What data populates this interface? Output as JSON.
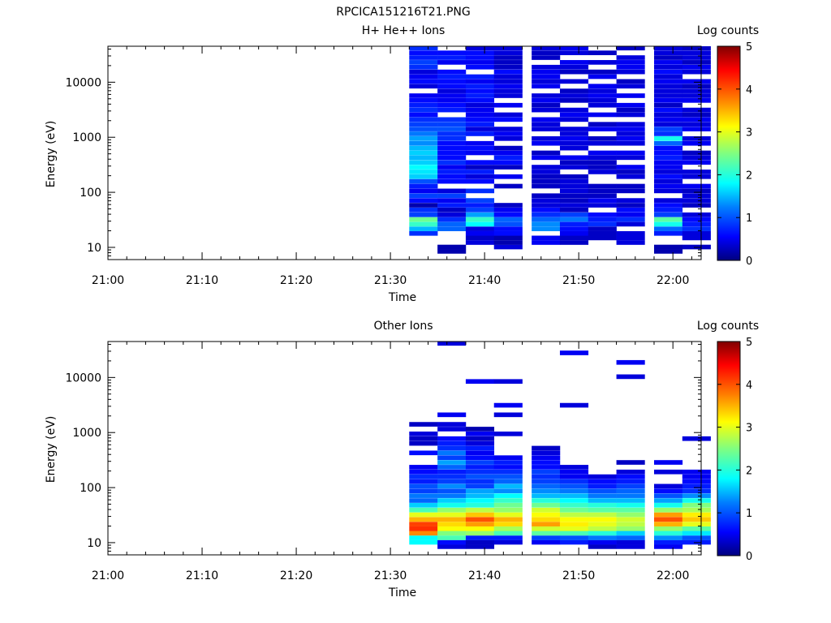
{
  "title": "RPCICA151216T21.PNG",
  "chart_data": [
    {
      "type": "heatmap",
      "title": "H+ He++ Ions",
      "xlabel": "Time",
      "ylabel": "Energy (eV)",
      "x_ticks": [
        "21:00",
        "21:10",
        "21:20",
        "21:30",
        "21:40",
        "21:50",
        "22:00"
      ],
      "xlim": [
        "21:00",
        "22:03"
      ],
      "y_scale": "log",
      "y_ticks": [
        "10",
        "100",
        "1000",
        "10000"
      ],
      "ylim": [
        6,
        45000
      ],
      "colorbar": {
        "label": "Log counts",
        "ticks": [
          "0",
          "1",
          "2",
          "3",
          "4",
          "5"
        ],
        "range": [
          0,
          5
        ],
        "colormap": "rainbow"
      },
      "time_columns": [
        "21:32",
        "21:35",
        "21:38",
        "21:41",
        "21:45",
        "21:48",
        "21:51",
        "21:54",
        "21:58",
        "22:01"
      ],
      "energy_channels_ev": [
        8.5,
        10.2,
        12.3,
        14.9,
        18,
        21.8,
        26.5,
        32.3,
        39.3,
        48,
        58.5,
        71.5,
        87.3,
        106.5,
        130,
        158.7,
        193.5,
        236,
        288,
        351.4,
        429,
        523,
        638,
        779,
        951,
        1161,
        1417,
        1730,
        2111,
        2576,
        3144,
        3837,
        4683,
        5714,
        6973,
        8511,
        10385,
        12674,
        15467,
        18876,
        23035,
        28110,
        34305,
        41865
      ],
      "log_counts": [
        [
          null,
          null,
          null,
          null,
          0.8,
          1.5,
          2.1,
          2.4,
          0.9,
          0.8,
          0.2,
          0.6,
          0.9,
          0.5,
          0.7,
          1.0,
          1.6,
          1.7,
          1.8,
          1.6,
          1.5,
          1.6,
          1.5,
          1.3,
          1.4,
          1.2,
          1.0,
          0.9,
          0.8,
          0.6,
          0.8,
          0.7,
          0.6,
          0.5,
          null,
          0.4,
          0.6,
          0.5,
          0.4,
          0.8,
          0.9,
          0.7,
          0.6,
          0.8
        ],
        [
          0.2,
          0.2,
          null,
          null,
          null,
          1.1,
          1.1,
          0.8,
          0.4,
          0.3,
          0.7,
          0.5,
          0.9,
          0.4,
          null,
          0.6,
          0.6,
          0.7,
          0.5,
          0.8,
          0.6,
          0.6,
          0.6,
          0.6,
          0.8,
          0.8,
          1.0,
          0.9,
          0.8,
          null,
          0.7,
          0.6,
          0.5,
          0.5,
          0.4,
          0.6,
          0.6,
          0.7,
          0.6,
          null,
          0.5,
          0.7,
          0.6,
          null
        ],
        [
          null,
          null,
          0.4,
          0.3,
          0.5,
          0.4,
          1.8,
          2.1,
          1.4,
          0.9,
          0.7,
          0.9,
          null,
          0.8,
          null,
          0.6,
          0.4,
          0.7,
          0.3,
          0.6,
          null,
          0.5,
          0.6,
          0.5,
          null,
          0.7,
          0.4,
          0.7,
          0.6,
          0.5,
          0.5,
          0.4,
          0.6,
          0.7,
          0.6,
          0.7,
          0.5,
          0.7,
          null,
          0.6,
          0.5,
          0.6,
          0.6,
          0.4
        ],
        [
          null,
          0.4,
          0.2,
          0.2,
          0.6,
          0.6,
          1.0,
          1.1,
          0.6,
          0.5,
          0.3,
          null,
          null,
          null,
          0.3,
          null,
          0.5,
          null,
          0.3,
          0.6,
          0.7,
          0.5,
          0.3,
          null,
          0.4,
          0.5,
          0.4,
          null,
          0.6,
          0.4,
          null,
          0.5,
          null,
          0.4,
          0.4,
          0.5,
          0.4,
          0.4,
          0.6,
          0.3,
          0.3,
          0.3,
          0.4,
          0.4
        ],
        [
          null,
          null,
          0.5,
          0.5,
          null,
          1.3,
          1.3,
          1.1,
          0.8,
          0.6,
          0.4,
          0.4,
          0.3,
          null,
          0.3,
          0.3,
          0.3,
          0.4,
          0.4,
          null,
          0.5,
          0.3,
          null,
          0.5,
          0.4,
          null,
          0.4,
          0.4,
          0.5,
          null,
          0.4,
          0.3,
          0.5,
          0.4,
          null,
          0.5,
          0.4,
          0.5,
          0.5,
          0.4,
          null,
          0.3,
          0.3,
          0.4
        ],
        [
          null,
          null,
          0.3,
          0.3,
          0.5,
          0.6,
          0.7,
          1.2,
          0.9,
          0.3,
          0.4,
          0.3,
          0.3,
          0.4,
          0.4,
          0.4,
          0.3,
          null,
          0.4,
          0.3,
          0.5,
          null,
          0.4,
          0.4,
          0.5,
          0.4,
          0.4,
          null,
          0.4,
          0.5,
          0.4,
          null,
          0.3,
          0.4,
          0.3,
          null,
          0.4,
          null,
          0.3,
          0.4,
          0.5,
          null,
          0.4,
          0.5
        ],
        [
          null,
          null,
          null,
          0.3,
          0.3,
          0.3,
          0.8,
          0.7,
          0.6,
          null,
          0.4,
          0.5,
          0.3,
          0.3,
          0.3,
          null,
          null,
          0.4,
          0.3,
          0.3,
          0.4,
          0.5,
          null,
          0.4,
          0.3,
          null,
          0.5,
          0.3,
          null,
          0.5,
          null,
          0.4,
          0.4,
          0.5,
          0.4,
          0.5,
          null,
          0.5,
          0.3,
          null,
          0.4,
          null,
          0.3,
          null
        ],
        [
          null,
          null,
          0.4,
          0.4,
          0.4,
          null,
          0.4,
          0.8,
          0.5,
          0.6,
          0.3,
          0.4,
          null,
          0.3,
          0.3,
          null,
          0.4,
          0.3,
          0.5,
          null,
          0.4,
          0.5,
          null,
          0.4,
          0.5,
          0.4,
          0.5,
          0.4,
          null,
          0.4,
          0.3,
          0.5,
          null,
          0.5,
          null,
          0.4,
          0.3,
          null,
          0.4,
          0.5,
          0.5,
          0.4,
          null,
          0.3
        ],
        [
          0.2,
          0.2,
          null,
          null,
          0.7,
          1.1,
          1.9,
          2.3,
          0.9,
          0.7,
          0.6,
          0.4,
          null,
          0.4,
          0.5,
          0.4,
          0.6,
          0.4,
          0.5,
          0.5,
          0.7,
          0.6,
          0.6,
          1.1,
          1.9,
          0.8,
          0.9,
          0.4,
          0.5,
          0.4,
          0.6,
          0.3,
          0.5,
          0.4,
          0.4,
          0.4,
          0.5,
          0.4,
          0.6,
          0.4,
          0.5,
          0.3,
          0.4,
          0.4
        ],
        [
          null,
          0.3,
          null,
          0.4,
          0.4,
          0.8,
          0.7,
          0.6,
          0.4,
          null,
          0.3,
          0.4,
          0.4,
          0.3,
          0.5,
          null,
          0.4,
          0.4,
          null,
          0.5,
          0.4,
          0.3,
          null,
          0.5,
          0.4,
          null,
          0.5,
          0.4,
          0.5,
          0.3,
          0.4,
          null,
          0.5,
          0.4,
          0.4,
          0.3,
          0.5,
          null,
          0.4,
          0.5,
          0.3,
          0.4,
          0.4,
          0.3
        ]
      ]
    },
    {
      "type": "heatmap",
      "title": "Other Ions",
      "xlabel": "Time",
      "ylabel": "Energy (eV)",
      "x_ticks": [
        "21:00",
        "21:10",
        "21:20",
        "21:30",
        "21:40",
        "21:50",
        "22:00"
      ],
      "xlim": [
        "21:00",
        "22:03"
      ],
      "y_scale": "log",
      "y_ticks": [
        "10",
        "100",
        "1000",
        "10000"
      ],
      "ylim": [
        6,
        45000
      ],
      "colorbar": {
        "label": "Log counts",
        "ticks": [
          "0",
          "1",
          "2",
          "3",
          "4",
          "5"
        ],
        "range": [
          0,
          5
        ],
        "colormap": "rainbow"
      },
      "time_columns": [
        "21:32",
        "21:35",
        "21:38",
        "21:41",
        "21:45",
        "21:48",
        "21:51",
        "21:54",
        "21:58",
        "22:01"
      ],
      "energy_channels_ev": [
        8.5,
        10.2,
        12.3,
        14.9,
        18,
        21.8,
        26.5,
        32.3,
        39.3,
        48,
        58.5,
        71.5,
        87.3,
        106.5,
        130,
        158.7,
        193.5,
        236,
        288,
        351.4,
        429,
        523,
        638,
        779,
        951,
        1161,
        1417,
        1730,
        2111,
        2576,
        3144,
        3837,
        4683,
        5714,
        6973,
        8511,
        10385,
        12674,
        15467,
        18876,
        23035,
        28110,
        34305,
        41865
      ],
      "log_counts": [
        [
          null,
          1.8,
          1.8,
          3.7,
          4.2,
          4.1,
          3.5,
          3.0,
          2.2,
          1.6,
          1.1,
          1.2,
          0.9,
          1.0,
          0.7,
          0.8,
          0.6,
          0.5,
          null,
          null,
          0.6,
          null,
          0.3,
          0.3,
          0.4,
          null,
          0.3,
          null,
          null,
          null,
          null,
          null,
          null,
          null,
          null,
          null,
          null,
          null,
          null,
          null,
          null,
          null,
          null,
          null
        ],
        [
          0.4,
          0.6,
          2.2,
          2.5,
          3.1,
          3.3,
          3.5,
          3.0,
          2.6,
          1.9,
          1.6,
          1.2,
          1.0,
          1.3,
          0.9,
          0.8,
          0.7,
          1.1,
          1.4,
          0.9,
          1.2,
          0.8,
          0.7,
          0.6,
          null,
          0.4,
          0.4,
          null,
          0.5,
          null,
          null,
          null,
          null,
          null,
          null,
          null,
          null,
          null,
          null,
          null,
          null,
          null,
          null,
          0.4
        ],
        [
          0.3,
          0.3,
          0.7,
          2.6,
          3.1,
          3.6,
          4.0,
          3.4,
          2.8,
          2.0,
          1.8,
          1.5,
          1.4,
          0.9,
          0.8,
          1.0,
          0.8,
          0.7,
          0.9,
          0.6,
          0.5,
          0.7,
          0.4,
          0.3,
          0.5,
          0.2,
          null,
          null,
          null,
          null,
          null,
          null,
          null,
          null,
          null,
          0.5,
          null,
          null,
          null,
          null,
          null,
          null,
          null,
          null
        ],
        [
          null,
          0.4,
          0.7,
          2.2,
          2.7,
          3.3,
          3.5,
          3.0,
          2.6,
          2.4,
          2.1,
          1.8,
          1.3,
          1.5,
          1.1,
          1.0,
          0.8,
          0.6,
          0.7,
          0.5,
          null,
          null,
          null,
          null,
          0.4,
          null,
          null,
          null,
          0.4,
          null,
          0.5,
          null,
          null,
          null,
          null,
          0.4,
          null,
          null,
          null,
          null,
          null,
          null,
          null,
          null
        ],
        [
          null,
          0.5,
          0.9,
          2.3,
          2.9,
          3.6,
          3.3,
          3.1,
          2.9,
          2.4,
          2.0,
          1.5,
          1.3,
          1.1,
          0.9,
          0.8,
          0.9,
          0.6,
          0.6,
          0.5,
          0.4,
          0.3,
          null,
          null,
          null,
          null,
          null,
          null,
          null,
          null,
          null,
          null,
          null,
          null,
          null,
          null,
          null,
          null,
          null,
          null,
          null,
          null,
          null,
          null
        ],
        [
          null,
          0.7,
          1.0,
          2.2,
          3.0,
          3.2,
          3.1,
          2.8,
          2.4,
          2.1,
          1.8,
          1.5,
          1.2,
          1.0,
          0.8,
          0.5,
          0.5,
          0.4,
          null,
          null,
          null,
          null,
          null,
          null,
          null,
          null,
          null,
          null,
          null,
          null,
          0.4,
          null,
          null,
          null,
          null,
          null,
          null,
          null,
          null,
          null,
          null,
          0.5,
          null,
          null
        ],
        [
          0.3,
          0.5,
          1.2,
          2.0,
          2.8,
          3.0,
          3.1,
          2.8,
          2.3,
          2.0,
          1.5,
          1.2,
          1.0,
          0.7,
          0.6,
          0.4,
          null,
          null,
          null,
          null,
          null,
          null,
          null,
          null,
          null,
          null,
          null,
          null,
          null,
          null,
          null,
          null,
          null,
          null,
          null,
          null,
          null,
          null,
          null,
          null,
          null,
          null,
          null,
          null
        ],
        [
          0.4,
          0.4,
          1.1,
          1.6,
          2.6,
          2.8,
          2.9,
          2.6,
          2.3,
          1.9,
          1.5,
          1.2,
          1.1,
          0.9,
          0.7,
          0.6,
          0.4,
          null,
          0.3,
          null,
          null,
          null,
          null,
          null,
          null,
          null,
          null,
          null,
          null,
          null,
          null,
          null,
          null,
          null,
          null,
          null,
          0.4,
          null,
          null,
          0.5,
          null,
          null,
          null,
          null
        ],
        [
          0.5,
          0.7,
          1.3,
          2.0,
          2.6,
          3.5,
          4.0,
          3.6,
          2.6,
          1.9,
          1.4,
          1.0,
          0.6,
          0.4,
          null,
          null,
          0.4,
          null,
          0.5,
          null,
          null,
          null,
          null,
          null,
          null,
          null,
          null,
          null,
          null,
          null,
          null,
          null,
          null,
          null,
          null,
          null,
          null,
          null,
          null,
          null,
          null,
          null,
          null,
          null
        ],
        [
          null,
          0.7,
          1.0,
          1.7,
          2.3,
          3.0,
          3.4,
          3.2,
          2.7,
          2.5,
          1.9,
          1.3,
          0.8,
          0.7,
          0.6,
          0.5,
          0.5,
          null,
          null,
          null,
          null,
          null,
          null,
          0.4,
          null,
          null,
          null,
          null,
          null,
          null,
          null,
          null,
          null,
          null,
          null,
          null,
          null,
          null,
          null,
          null,
          null,
          null,
          null,
          null
        ]
      ]
    }
  ]
}
